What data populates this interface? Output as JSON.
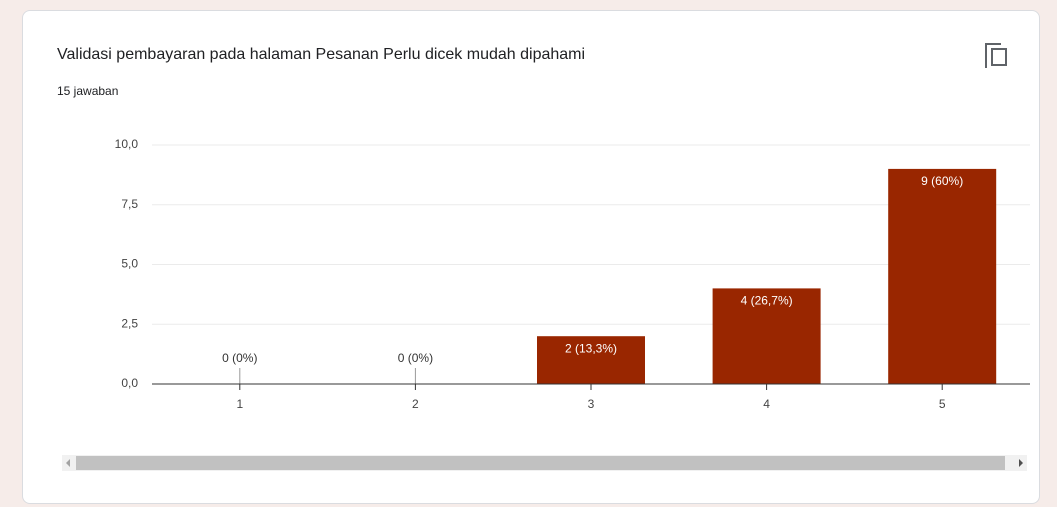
{
  "chart_data": {
    "type": "bar",
    "title": "Validasi pembayaran pada halaman Pesanan Perlu dicek mudah dipahami",
    "subtitle": "15 jawaban",
    "categories": [
      "1",
      "2",
      "3",
      "4",
      "5"
    ],
    "values": [
      0,
      0,
      2,
      4,
      9
    ],
    "value_labels": [
      "0 (0%)",
      "0 (0%)",
      "2 (13,3%)",
      "4 (26,7%)",
      "9 (60%)"
    ],
    "color": "#992600",
    "ylim": [
      0,
      10
    ],
    "yticks": [
      {
        "value": 0,
        "label": "0,0"
      },
      {
        "value": 2.5,
        "label": "2,5"
      },
      {
        "value": 5,
        "label": "5,0"
      },
      {
        "value": 7.5,
        "label": "7,5"
      },
      {
        "value": 10,
        "label": "10,0"
      }
    ],
    "grid": true
  }
}
